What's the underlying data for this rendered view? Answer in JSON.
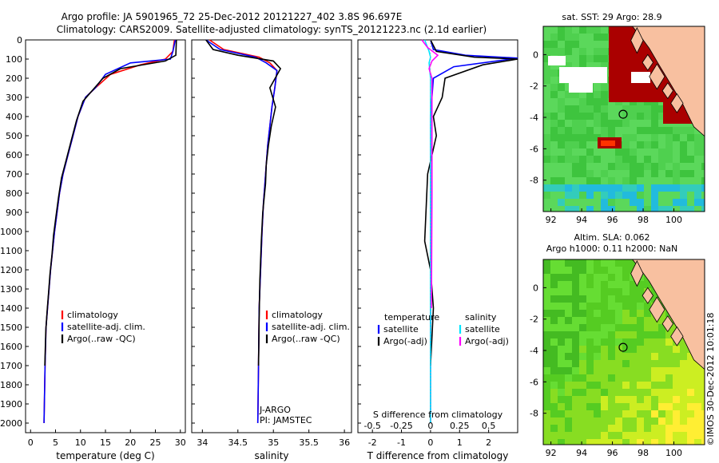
{
  "title_line1": "Argo profile: JA 5901965_72 25-Dec-2012 20121227_402 3.8S 96.697E",
  "title_line2": "Climatology: CARS2009. Satellite-adjusted climatology: synTS_20121223.nc (2.1d earlier)",
  "side_label": "©IMOS 30-Dec-2012 10:01:18",
  "colors": {
    "climatology": "#ff0000",
    "satellite": "#0000ff",
    "argo": "#000000",
    "argo_s": "#ff00ff",
    "sat_s": "#00e5ff"
  },
  "chart_data": [
    {
      "type": "line",
      "title": "temperature profile",
      "xlabel": "temperature (deg C)",
      "ylabel": "",
      "xlim": [
        -1,
        31
      ],
      "ylim": [
        2050,
        0
      ],
      "xticks": [
        "0",
        "5",
        "10",
        "15",
        "20",
        "25",
        "30"
      ],
      "yticks": [
        "0",
        "100",
        "200",
        "300",
        "400",
        "500",
        "600",
        "700",
        "800",
        "900",
        "1000",
        "1100",
        "1200",
        "1300",
        "1400",
        "1500",
        "1600",
        "1700",
        "1800",
        "1900",
        "2000"
      ],
      "legend": [
        "climatology",
        "satellite-adj. clim.",
        "Argo(..raw -QC)"
      ],
      "series": [
        {
          "name": "climatology",
          "color": "#ff0000",
          "x": [
            28.8,
            28.5,
            27,
            22,
            16,
            13,
            11,
            9.5,
            8.5,
            7.5,
            6.5,
            5.8,
            5.3,
            4.8,
            4.4,
            4.0,
            3.7,
            3.4,
            3.1,
            2.9,
            2.7
          ],
          "y": [
            0,
            60,
            100,
            130,
            180,
            250,
            300,
            400,
            500,
            600,
            700,
            800,
            900,
            1000,
            1100,
            1200,
            1300,
            1400,
            1500,
            1700,
            2000
          ]
        },
        {
          "name": "satellite-adj. clim.",
          "color": "#0000ff",
          "x": [
            29,
            28.5,
            28,
            20,
            15,
            13,
            11,
            9.5,
            8.5,
            7.5,
            6.5,
            5.8,
            5.3,
            4.8,
            4.4,
            4.0,
            3.7,
            3.4,
            3.1,
            2.9,
            2.7
          ],
          "y": [
            0,
            60,
            100,
            120,
            180,
            250,
            300,
            400,
            500,
            600,
            700,
            800,
            900,
            1000,
            1100,
            1200,
            1300,
            1400,
            1500,
            1700,
            2000
          ]
        },
        {
          "name": "Argo(..raw -QC)",
          "color": "#000000",
          "x": [
            29.2,
            29.1,
            27,
            18,
            14.5,
            12.5,
            10.5,
            9.2,
            8.2,
            7.2,
            6.2,
            5.6,
            5.1,
            4.6,
            4.3,
            3.9,
            3.6,
            3.3,
            3.05,
            2.85
          ],
          "y": [
            0,
            80,
            110,
            150,
            200,
            260,
            320,
            420,
            520,
            620,
            720,
            820,
            920,
            1020,
            1120,
            1220,
            1320,
            1420,
            1520,
            1700
          ]
        }
      ]
    },
    {
      "type": "line",
      "title": "salinity profile",
      "xlabel": "salinity",
      "xlim": [
        33.85,
        36.1
      ],
      "ylim": [
        2050,
        0
      ],
      "xticks": [
        "34",
        "34.5",
        "35",
        "35.5",
        "36"
      ],
      "legend": [
        "climatology",
        "satellite-adj. clim.",
        "Argo(..raw -QC)"
      ],
      "annotation": [
        "J-ARGO",
        "PI: JAMSTEC"
      ],
      "series": [
        {
          "name": "climatology",
          "color": "#ff0000",
          "x": [
            34.1,
            34.3,
            34.8,
            34.95,
            35.05,
            35.02,
            34.98,
            34.95,
            34.92,
            34.9,
            34.88,
            34.86,
            34.84,
            34.82,
            34.8,
            34.79,
            34.78
          ],
          "y": [
            0,
            50,
            90,
            120,
            160,
            250,
            350,
            450,
            550,
            650,
            750,
            850,
            1000,
            1200,
            1400,
            1700,
            2000
          ]
        },
        {
          "name": "satellite-adj. clim.",
          "color": "#0000ff",
          "x": [
            34.05,
            34.25,
            34.75,
            34.9,
            35.05,
            35.02,
            34.98,
            34.95,
            34.92,
            34.9,
            34.88,
            34.86,
            34.84,
            34.82,
            34.8,
            34.79,
            34.78
          ],
          "y": [
            0,
            50,
            90,
            120,
            160,
            250,
            350,
            450,
            550,
            650,
            750,
            850,
            1000,
            1200,
            1400,
            1700,
            2000
          ]
        },
        {
          "name": "Argo(..raw -QC)",
          "color": "#000000",
          "x": [
            34.05,
            34.15,
            34.5,
            35.0,
            35.1,
            34.95,
            35.03,
            34.97,
            34.93,
            34.9,
            34.89,
            34.85,
            34.83,
            34.81,
            34.8,
            34.79
          ],
          "y": [
            0,
            50,
            80,
            110,
            150,
            250,
            350,
            450,
            550,
            650,
            750,
            900,
            1050,
            1250,
            1450,
            1700
          ]
        }
      ]
    },
    {
      "type": "line",
      "title": "difference from climatology",
      "xlabel": "T difference from climatology",
      "xlabel_top": "S difference from climatology",
      "xlim": [
        -2.5,
        3
      ],
      "ylim": [
        2050,
        0
      ],
      "xticks": [
        "-2",
        "-1",
        "0",
        "1",
        "2"
      ],
      "xticks_top": [
        "-0.5",
        "-0.25",
        "0",
        "0.25",
        "0.5"
      ],
      "legend_left": [
        "temperature",
        "satellite",
        "Argo(-adj)"
      ],
      "legend_right": [
        "salinity",
        "satellite",
        "Argo(-adj)"
      ],
      "series": [
        {
          "name": "T satellite",
          "color": "#0000ff",
          "x": [
            0,
            0.1,
            1.2,
            3.0,
            0.8,
            0.1,
            0,
            0,
            0,
            0
          ],
          "y": [
            0,
            50,
            80,
            95,
            140,
            200,
            400,
            800,
            1400,
            2000
          ]
        },
        {
          "name": "T Argo(-adj)",
          "color": "#000000",
          "x": [
            0,
            0.2,
            1.5,
            3.0,
            1.8,
            0.5,
            0.4,
            0.1,
            0.2,
            -0.1,
            -0.2,
            0,
            0.1,
            0
          ],
          "y": [
            0,
            60,
            90,
            100,
            130,
            200,
            300,
            400,
            500,
            700,
            1050,
            1200,
            1400,
            1700
          ]
        },
        {
          "name": "S satellite",
          "color": "#00e5ff",
          "x": [
            -0.2,
            -0.05,
            0,
            -0.05,
            0,
            0,
            0
          ],
          "y": [
            0,
            60,
            90,
            120,
            200,
            800,
            2000
          ]
        },
        {
          "name": "S Argo(-adj)",
          "color": "#ff00ff",
          "x": [
            -0.3,
            -0.1,
            0.25,
            0.05,
            -0.05,
            0.05,
            0.05,
            0.03
          ],
          "y": [
            0,
            40,
            80,
            110,
            150,
            200,
            800,
            1400
          ]
        }
      ]
    },
    {
      "type": "heatmap",
      "title": "sat. SST: 29 Argo: 28.9",
      "xticks": [
        "92",
        "94",
        "96",
        "98",
        "100"
      ],
      "yticks": [
        "0",
        "-2",
        "-4",
        "-6",
        "-8"
      ],
      "xlim": [
        91.5,
        102
      ],
      "ylim": [
        -10,
        1.8
      ],
      "marker": {
        "lon": 96.697,
        "lat": -3.8
      }
    },
    {
      "type": "heatmap",
      "title": "Altim. SLA: 0.062",
      "subtitle": "Argo h1000: 0.11 h2000: NaN",
      "xticks": [
        "92",
        "94",
        "96",
        "98",
        "100"
      ],
      "yticks": [
        "0",
        "-2",
        "-4",
        "-6",
        "-8"
      ],
      "xlim": [
        91.5,
        102
      ],
      "ylim": [
        -10,
        1.8
      ],
      "marker": {
        "lon": 96.697,
        "lat": -3.8
      }
    }
  ]
}
